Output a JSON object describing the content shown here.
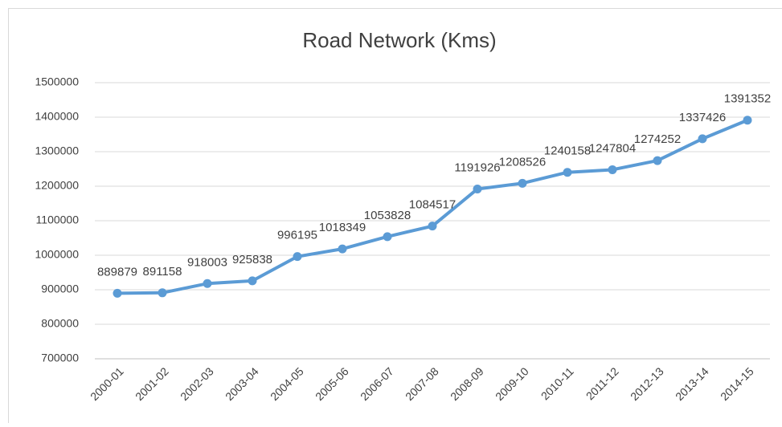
{
  "chart_data": {
    "type": "line",
    "title": "Road Network (Kms)",
    "categories": [
      "2000-01",
      "2001-02",
      "2002-03",
      "2003-04",
      "2004-05",
      "2005-06",
      "2006-07",
      "2007-08",
      "2008-09",
      "2009-10",
      "2010-11",
      "2011-12",
      "2012-13",
      "2013-14",
      "2014-15"
    ],
    "series": [
      {
        "name": "Road Network (Kms)",
        "color": "#5b9bd5",
        "values": [
          889879,
          891158,
          918003,
          925838,
          996195,
          1018349,
          1053828,
          1084517,
          1191926,
          1208526,
          1240158,
          1247804,
          1274252,
          1337426,
          1391352
        ]
      }
    ],
    "ylim": [
      700000,
      1500000
    ],
    "yticks": [
      700000,
      800000,
      900000,
      1000000,
      1100000,
      1200000,
      1300000,
      1400000,
      1500000
    ],
    "grid": true
  }
}
